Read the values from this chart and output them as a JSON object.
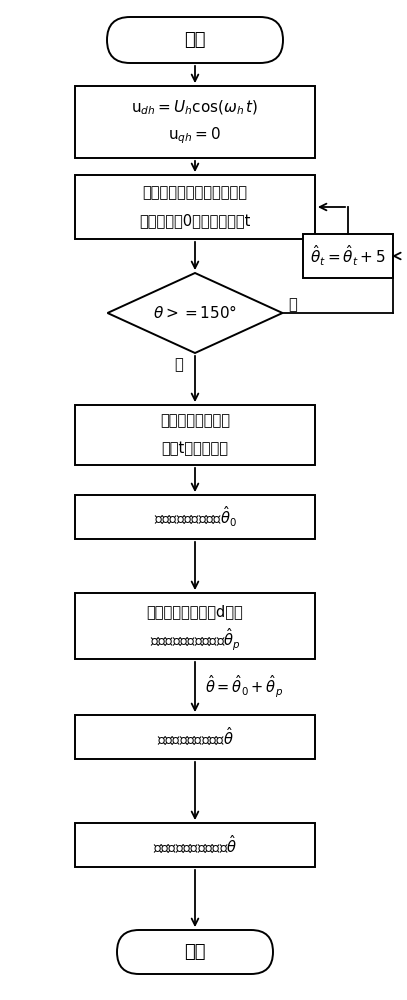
{
  "fig_width": 4.07,
  "fig_height": 10.0,
  "bg_color": "#ffffff",
  "box_color": "#ffffff",
  "border_color": "#000000",
  "text_color": "#000000",
  "start_text": "开始",
  "end_text": "结束",
  "box1_line1": "$\\mathrm{u}_{dh} = U_h\\cos(\\omega_h\\, t)$",
  "box1_line2": "$\\mathrm{u}_{qh} = 0$",
  "box2_line1": "施加高频脉振电压，注入角",
  "box2_line2": "初始値设为0，作用时间为t",
  "feedback_text": "$\\hat{\\theta}_t=\\hat{\\theta}_t+5$",
  "diamond_text": "$\\theta>=150°$",
  "yes_text": "是",
  "no_text": "否",
  "box3_line1": "处理计算每个时间",
  "box3_line2": "周期t的反馈电流",
  "box4_text": "得到转子初次估计値$\\hat{\\theta}_0$",
  "box5_line1": "施加脉冲电压判斪d轴正",
  "box5_line2": "方向，得到转子补偿値$\\hat{\\theta}_p$",
  "formula_text": "$\\hat{\\theta}=\\hat{\\theta}_0+\\hat{\\theta}_p$",
  "box6_text": "得到转子最终估计値$\\hat{\\theta}$",
  "box7_text": "预定位法将转子锁定到$\\hat{\\theta}$"
}
